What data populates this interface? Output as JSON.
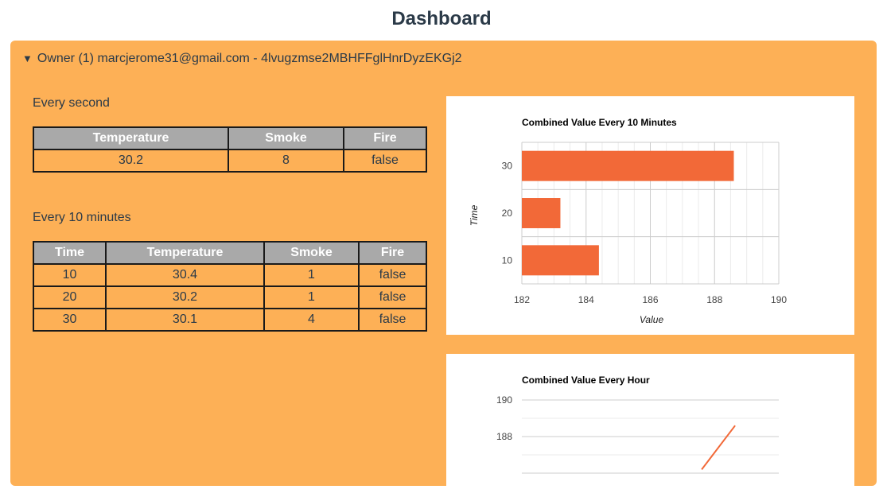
{
  "page": {
    "title": "Dashboard"
  },
  "owner": {
    "toggle_glyph": "▼",
    "label": "Owner (1) marcjerome31@gmail.com - 4lvugzmse2MBHFFglHnrDyzEKGj2"
  },
  "every_second": {
    "label": "Every second",
    "headers": [
      "Temperature",
      "Smoke",
      "Fire"
    ],
    "row": [
      "30.2",
      "8",
      "false"
    ]
  },
  "every_10_minutes": {
    "label": "Every 10 minutes",
    "headers": [
      "Time",
      "Temperature",
      "Smoke",
      "Fire"
    ],
    "rows": [
      [
        "10",
        "30.4",
        "1",
        "false"
      ],
      [
        "20",
        "30.2",
        "1",
        "false"
      ],
      [
        "30",
        "30.1",
        "4",
        "false"
      ]
    ]
  },
  "colors": {
    "panel": "#fdb056",
    "bar": "#f26938",
    "header_cell": "#a9a9a9"
  },
  "chart_data": [
    {
      "type": "bar",
      "orientation": "horizontal",
      "title": "Combined Value Every 10 Minutes",
      "xlabel": "Value",
      "ylabel": "Time",
      "categories": [
        "30",
        "20",
        "10"
      ],
      "values": [
        188.6,
        183.2,
        184.4
      ],
      "xlim": [
        182,
        190
      ],
      "xticks": [
        "182",
        "184",
        "186",
        "188",
        "190"
      ],
      "grid": true
    },
    {
      "type": "line",
      "title": "Combined Value Every Hour",
      "yticks": [
        "190",
        "188"
      ],
      "ylim_visible": [
        187,
        190
      ],
      "series": [
        {
          "points": [
            [
              0.7,
              186.2
            ],
            [
              0.83,
              188.6
            ]
          ]
        }
      ],
      "note_partial": true
    }
  ]
}
